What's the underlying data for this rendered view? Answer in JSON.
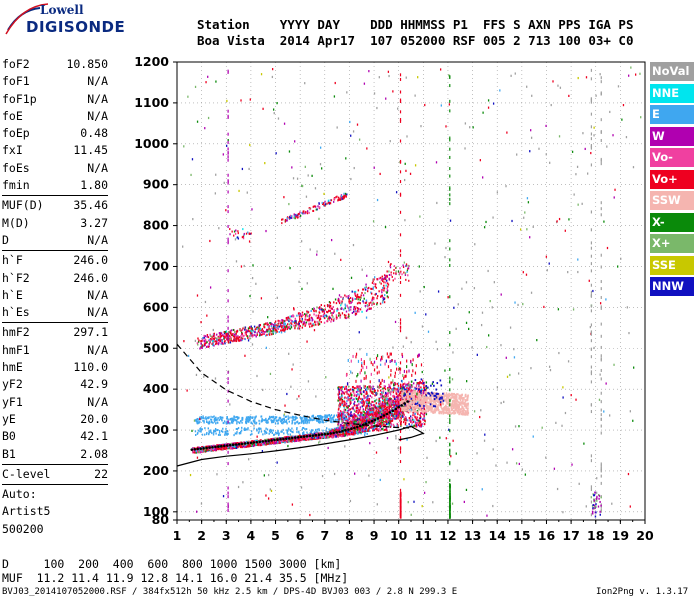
{
  "logo": {
    "line1": "Lowell",
    "line2": "DIGISONDE"
  },
  "header": {
    "line1": "Station    YYYY DAY    DDD HHMMSS P1  FFS S AXN PPS IGA PS",
    "line2": "Boa Vista  2014 Apr17  107 052000 RSF 005 2 713 100 03+ C0"
  },
  "params": [
    {
      "name": "foF2",
      "value": "10.850"
    },
    {
      "name": "foF1",
      "value": "N/A"
    },
    {
      "name": "foF1p",
      "value": "N/A"
    },
    {
      "name": "foE",
      "value": "N/A"
    },
    {
      "name": "foEp",
      "value": "0.48"
    },
    {
      "name": "fxI",
      "value": "11.45"
    },
    {
      "name": "foEs",
      "value": "N/A"
    },
    {
      "name": "fmin",
      "value": "1.80"
    },
    {
      "sep": true
    },
    {
      "name": "MUF(D)",
      "value": "35.46"
    },
    {
      "name": "M(D)",
      "value": "3.27"
    },
    {
      "name": "D",
      "value": "N/A"
    },
    {
      "sep": true
    },
    {
      "name": "h`F",
      "value": "246.0"
    },
    {
      "name": "h`F2",
      "value": "246.0"
    },
    {
      "name": "h`E",
      "value": "N/A"
    },
    {
      "name": "h`Es",
      "value": "N/A"
    },
    {
      "sep": true
    },
    {
      "name": "hmF2",
      "value": "297.1"
    },
    {
      "name": "hmF1",
      "value": "N/A"
    },
    {
      "name": "hmE",
      "value": "110.0"
    },
    {
      "name": "yF2",
      "value": "42.9"
    },
    {
      "name": "yF1",
      "value": "N/A"
    },
    {
      "name": "yE",
      "value": "20.0"
    },
    {
      "name": "B0",
      "value": "42.1"
    },
    {
      "name": "B1",
      "value": "2.08"
    },
    {
      "sep": true
    },
    {
      "name": "C-level",
      "value": "22"
    },
    {
      "sep": true
    },
    {
      "name": "Auto:",
      "value": ""
    },
    {
      "name": "Artist5",
      "value": ""
    },
    {
      "name": "500200",
      "value": ""
    }
  ],
  "legend": [
    {
      "label": "NoVal",
      "color": "#a0a0a0"
    },
    {
      "label": "NNE",
      "color": "#00e5ee"
    },
    {
      "label": "E",
      "color": "#3fa7f0"
    },
    {
      "label": "W",
      "color": "#b000b0"
    },
    {
      "label": "Vo-",
      "color": "#f040a0"
    },
    {
      "label": "Vo+",
      "color": "#ee0020"
    },
    {
      "label": "SSW",
      "color": "#f5b5b0"
    },
    {
      "label": "X-",
      "color": "#0a8a0a"
    },
    {
      "label": "X+",
      "color": "#7ab86a"
    },
    {
      "label": "SSE",
      "color": "#c8c800"
    },
    {
      "label": "NNW",
      "color": "#1010c0"
    }
  ],
  "bottom": {
    "dist_row": "D     100  200  400  600  800 1000 1500 3000 [km]",
    "muf_row": "MUF  11.2 11.4 11.9 12.8 14.1 16.0 21.4 35.5 [MHz]",
    "footer_left": "BVJ03_2014107052000.RSF / 384fx512h 50 kHz 2.5 km / DPS-4D BVJ03 003 / 2.8 N 299.3 E",
    "footer_right": "Ion2Png v. 1.3.17"
  },
  "chart_data": {
    "type": "scatter",
    "title": "",
    "xlabel": "",
    "ylabel": "",
    "xlim": [
      1,
      20
    ],
    "ylim": [
      80,
      1200
    ],
    "x_ticks": [
      1,
      2,
      3,
      4,
      5,
      6,
      7,
      8,
      9,
      10,
      11,
      12,
      13,
      14,
      15,
      16,
      17,
      18,
      19,
      20
    ],
    "y_ticks": [
      80,
      100,
      200,
      300,
      400,
      500,
      600,
      700,
      800,
      900,
      1000,
      1100,
      1200
    ],
    "grid": true,
    "traces": [
      {
        "name": "F2 O-trace lower",
        "from": [
          1.6,
          255
        ],
        "to": [
          10.5,
          330
        ]
      },
      {
        "name": "F2 multi-hop",
        "from": [
          1.8,
          510
        ],
        "to": [
          9.6,
          640
        ]
      },
      {
        "name": "F2 third-hop",
        "from": [
          5.2,
          800
        ],
        "to": [
          7.8,
          870
        ]
      },
      {
        "name": "spread F cloud",
        "center": [
          10.8,
          390
        ]
      }
    ],
    "profile_solid": [
      [
        1,
        212
      ],
      [
        2,
        228
      ],
      [
        3,
        236
      ],
      [
        4,
        242
      ],
      [
        5,
        249
      ],
      [
        6,
        257
      ],
      [
        7,
        266
      ],
      [
        8,
        276
      ],
      [
        9,
        287
      ],
      [
        10,
        300
      ],
      [
        10.5,
        309
      ],
      [
        11,
        292
      ],
      [
        10.5,
        282
      ],
      [
        10,
        276
      ]
    ],
    "profile_dashed": [
      [
        1,
        510
      ],
      [
        2,
        440
      ],
      [
        3,
        398
      ],
      [
        4,
        370
      ],
      [
        5,
        350
      ],
      [
        6,
        336
      ],
      [
        7,
        324
      ],
      [
        8,
        316
      ],
      [
        9,
        310
      ],
      [
        10,
        306
      ],
      [
        10.5,
        305
      ]
    ]
  }
}
